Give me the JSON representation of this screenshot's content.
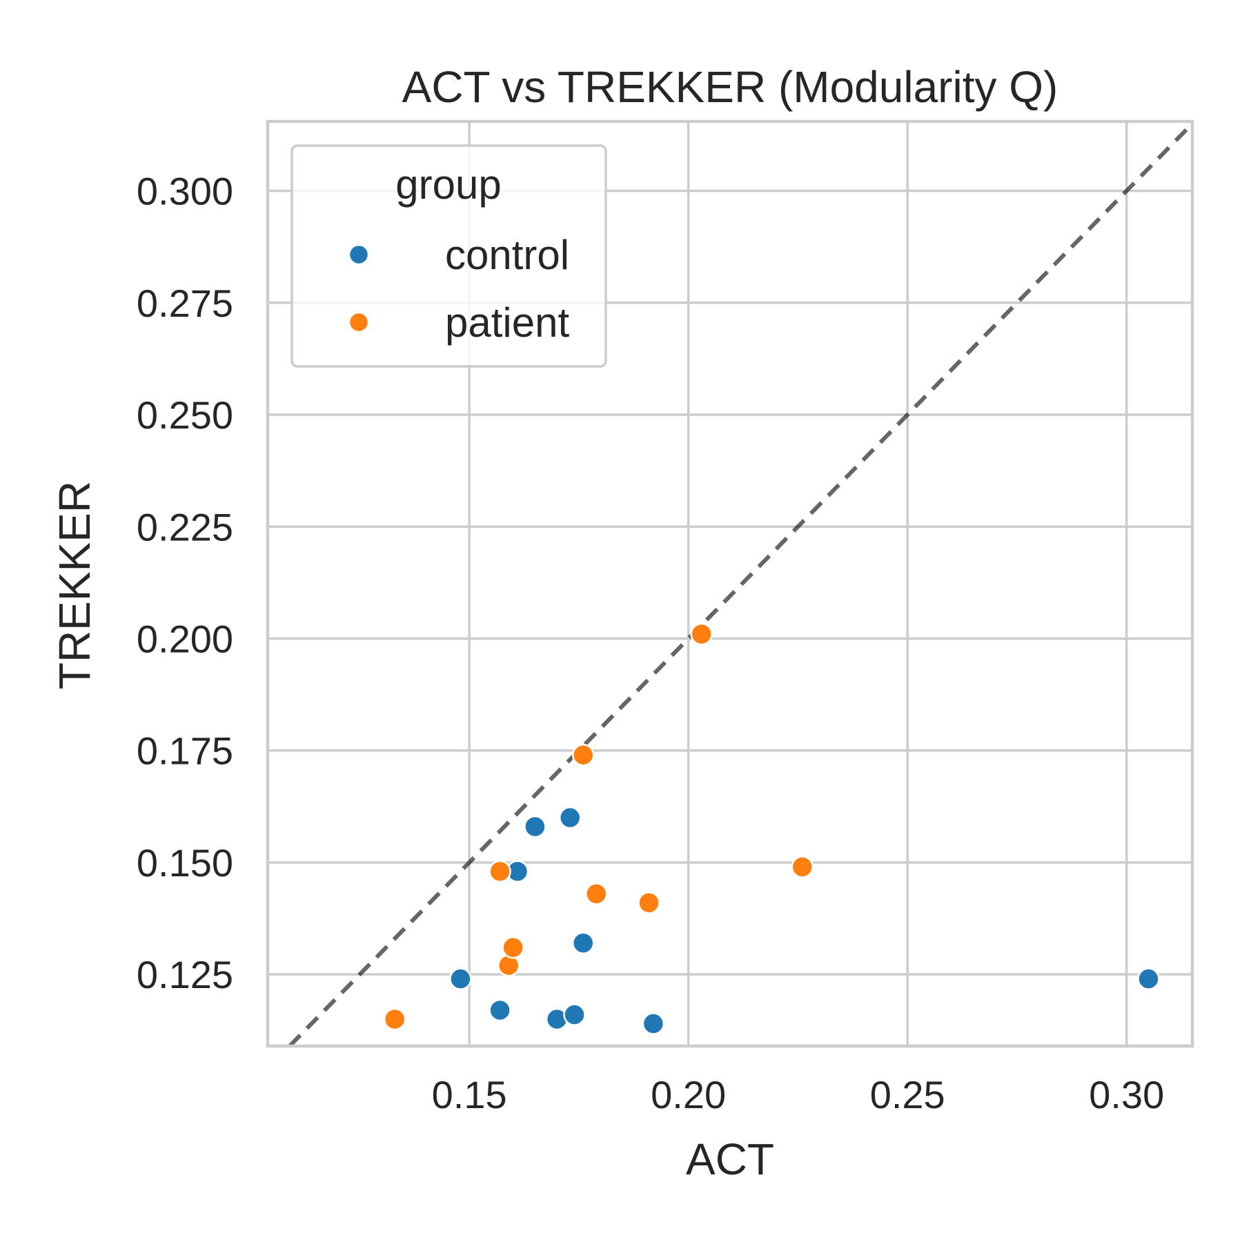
{
  "chart_data": {
    "type": "scatter",
    "title": "ACT vs TREKKER (Modularity Q)",
    "xlabel": "ACT",
    "ylabel": "TREKKER",
    "xlim": [
      0.104,
      0.315
    ],
    "ylim": [
      0.109,
      0.3155
    ],
    "xticks": [
      0.15,
      0.2,
      0.25,
      0.3
    ],
    "xtick_labels": [
      "0.15",
      "0.20",
      "0.25",
      "0.30"
    ],
    "yticks": [
      0.125,
      0.15,
      0.175,
      0.2,
      0.225,
      0.25,
      0.275,
      0.3
    ],
    "ytick_labels": [
      "0.125",
      "0.150",
      "0.175",
      "0.200",
      "0.225",
      "0.250",
      "0.275",
      "0.300"
    ],
    "grid": true,
    "reference_line": "y = x (dashed)",
    "legend": {
      "title": "group",
      "placement": "upper-left"
    },
    "series": [
      {
        "name": "control",
        "color": "#1f77b4",
        "points": [
          {
            "x": 0.148,
            "y": 0.124
          },
          {
            "x": 0.157,
            "y": 0.117
          },
          {
            "x": 0.161,
            "y": 0.148
          },
          {
            "x": 0.165,
            "y": 0.158
          },
          {
            "x": 0.17,
            "y": 0.115
          },
          {
            "x": 0.173,
            "y": 0.16
          },
          {
            "x": 0.174,
            "y": 0.116
          },
          {
            "x": 0.176,
            "y": 0.132
          },
          {
            "x": 0.192,
            "y": 0.114
          },
          {
            "x": 0.305,
            "y": 0.124
          }
        ]
      },
      {
        "name": "patient",
        "color": "#ff7f0e",
        "points": [
          {
            "x": 0.133,
            "y": 0.115
          },
          {
            "x": 0.157,
            "y": 0.148
          },
          {
            "x": 0.159,
            "y": 0.127
          },
          {
            "x": 0.16,
            "y": 0.131
          },
          {
            "x": 0.176,
            "y": 0.174
          },
          {
            "x": 0.179,
            "y": 0.143
          },
          {
            "x": 0.191,
            "y": 0.141
          },
          {
            "x": 0.203,
            "y": 0.201
          },
          {
            "x": 0.226,
            "y": 0.149
          }
        ]
      }
    ]
  }
}
